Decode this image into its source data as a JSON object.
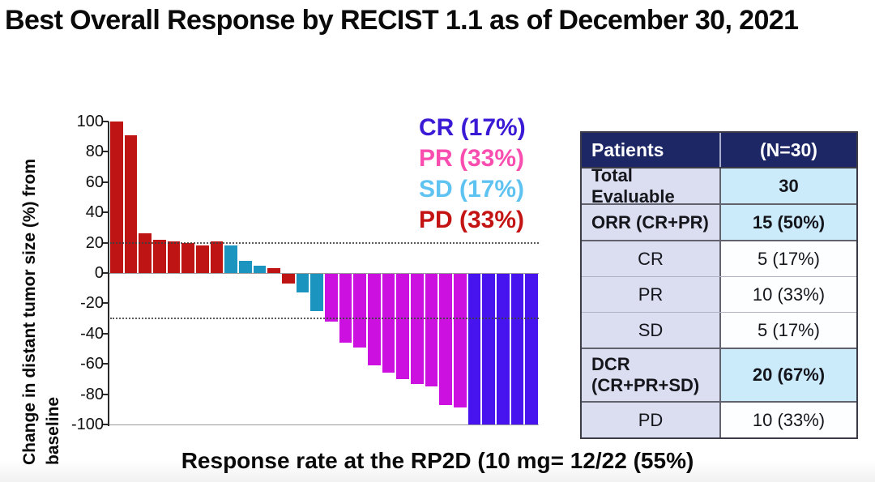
{
  "title": "Best Overall Response by RECIST 1.1 as of December 30, 2021",
  "caption": "Response rate at the RP2D (10 mg= 12/22 (55%)",
  "chart_data": {
    "type": "bar",
    "subtype": "waterfall",
    "title": "Best Overall Response by RECIST 1.1 as of December 30, 2021",
    "ylabel": "Change in distant tumor size (%) from\nbaseline",
    "xlabel": "",
    "ylim": [
      -100,
      100
    ],
    "yticks": [
      100,
      80,
      60,
      40,
      20,
      0,
      -20,
      -40,
      -60,
      -80,
      -100
    ],
    "reference_lines": [
      20,
      -30
    ],
    "grid": false,
    "legend_position": "top-right-inside",
    "values": [
      100,
      91,
      26,
      22,
      21,
      20,
      18,
      21,
      18,
      8,
      5,
      3,
      -7,
      -13,
      -25,
      -32,
      -46,
      -49,
      -61,
      -66,
      -70,
      -73,
      -75,
      -87,
      -89,
      -100,
      -100,
      -100,
      -100,
      -100
    ],
    "responses": [
      "PD",
      "PD",
      "PD",
      "PD",
      "PD",
      "PD",
      "PD",
      "PD",
      "SD",
      "SD",
      "SD",
      "PD",
      "PD",
      "SD",
      "SD",
      "PR",
      "PR",
      "PR",
      "PR",
      "PR",
      "PR",
      "PR",
      "PR",
      "PR",
      "PR",
      "CR",
      "CR",
      "CR",
      "CR",
      "CR"
    ],
    "colors": {
      "CR": "#4714F0",
      "PR": "#CB10DF",
      "SD": "#1B94BF",
      "PD": "#BE1414"
    },
    "legend": [
      {
        "label": "CR (17%)",
        "response": "CR",
        "color": "#3B1AD6"
      },
      {
        "label": "PR (33%)",
        "response": "PR",
        "color": "#F94DB0"
      },
      {
        "label": "SD (17%)",
        "response": "SD",
        "color": "#5FC3F2"
      },
      {
        "label": "PD (33%)",
        "response": "PD",
        "color": "#C41313"
      }
    ],
    "axis_colors": {
      "axis": "#2a2a2a",
      "gridline": "#9b9b9b",
      "refline": "#3f3f3f"
    }
  },
  "table": {
    "header": [
      "Patients",
      "(N=30)"
    ],
    "header_bg": "#1D2766",
    "label_bg": "#DBDEF0",
    "highlight_bg": "#CBEBFA",
    "rows": [
      {
        "label": "Total Evaluable",
        "value": "30",
        "bold": true,
        "highlight": true,
        "sub": false,
        "divider": "none"
      },
      {
        "label": "ORR (CR+PR)",
        "value": "15 (50%)",
        "bold": true,
        "highlight": true,
        "sub": false,
        "divider": "thick"
      },
      {
        "label": "CR",
        "value": "5 (17%)",
        "bold": false,
        "highlight": false,
        "sub": true,
        "divider": "thick"
      },
      {
        "label": "PR",
        "value": "10 (33%)",
        "bold": false,
        "highlight": false,
        "sub": true,
        "divider": "thin"
      },
      {
        "label": "SD",
        "value": "5  (17%)",
        "bold": false,
        "highlight": false,
        "sub": true,
        "divider": "thin"
      },
      {
        "label": "DCR\n(CR+PR+SD)",
        "value": "20 (67%)",
        "bold": true,
        "highlight": true,
        "sub": false,
        "divider": "thick"
      },
      {
        "label": "PD",
        "value": "10 (33%)",
        "bold": false,
        "highlight": false,
        "sub": true,
        "divider": "thick"
      }
    ]
  }
}
